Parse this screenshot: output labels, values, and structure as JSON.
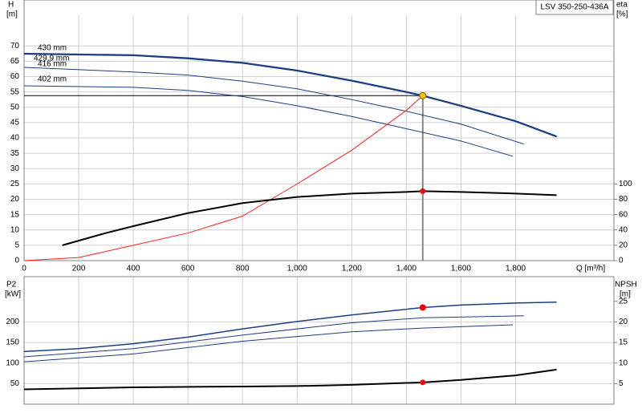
{
  "chart_data": [
    {
      "type": "line",
      "title": "LSV 350-250-436A",
      "y_label": "H",
      "y_unit": "[m]",
      "y2_label": "eta",
      "y2_unit": "[%]",
      "x_label": "Q [m³/h]",
      "xlim": [
        0,
        2160
      ],
      "xticks": [
        0,
        200,
        400,
        600,
        800,
        {
          "value": 1000,
          "label": "1,000"
        },
        {
          "value": 1200,
          "label": "1,200"
        },
        {
          "value": 1400,
          "label": "1,400"
        },
        {
          "value": 1600,
          "label": "1,600"
        },
        {
          "value": 1800,
          "label": "1,800"
        }
      ],
      "ylim": [
        0,
        80
      ],
      "yticks": [
        0,
        5,
        10,
        15,
        20,
        25,
        30,
        35,
        40,
        45,
        50,
        55,
        60,
        65,
        70
      ],
      "y2lim": [
        0,
        320
      ],
      "y2ticks": [
        0,
        20,
        40,
        60,
        80,
        100
      ],
      "grid": true,
      "series": [
        {
          "name": "430 mm",
          "color": "#1c3f80",
          "width": 2,
          "x": [
            0,
            400,
            600,
            800,
            1000,
            1200,
            1400,
            1460,
            1600,
            1800,
            1950
          ],
          "values": [
            67.5,
            67,
            66,
            64.5,
            62,
            58.7,
            55,
            53.8,
            50.5,
            45.5,
            40.5
          ]
        },
        {
          "name": "429.9 mm",
          "color": "#1c3f80",
          "width": 1,
          "x": [
            0,
            400,
            600,
            800,
            1000,
            1200,
            1400,
            1460,
            1600,
            1800,
            1950
          ],
          "values": [
            67.3,
            66.8,
            65.8,
            64.3,
            61.8,
            58.5,
            54.8,
            53.6,
            50.3,
            45.3,
            40.3
          ]
        },
        {
          "name": "416 mm",
          "color": "#1c3f80",
          "width": 1,
          "x": [
            0,
            400,
            600,
            800,
            1000,
            1200,
            1400,
            1600,
            1830
          ],
          "values": [
            63,
            61.5,
            60.5,
            58.5,
            56,
            52.5,
            48.7,
            44.5,
            38
          ]
        },
        {
          "name": "402 mm",
          "color": "#1c3f80",
          "width": 1,
          "x": [
            0,
            400,
            600,
            800,
            1000,
            1200,
            1400,
            1600,
            1790
          ],
          "values": [
            57,
            56.5,
            55.5,
            53.5,
            50.5,
            47,
            43,
            39,
            34
          ]
        },
        {
          "color": "#ff2020",
          "width": 1,
          "x": [
            0,
            200,
            400,
            600,
            800,
            1000,
            1200,
            1400,
            1460
          ],
          "values": [
            0,
            1,
            5,
            9,
            14.5,
            25,
            36,
            49,
            53.8
          ]
        },
        {
          "color": "#000000",
          "width": 2,
          "axis": "y2",
          "x": [
            140,
            300,
            400,
            600,
            800,
            1000,
            1200,
            1400,
            1460,
            1600,
            1800,
            1950
          ],
          "values": [
            20,
            36,
            45,
            62,
            75,
            83,
            87.5,
            89.6,
            90.6,
            89.6,
            87.5,
            85.4
          ]
        }
      ],
      "operating_point": {
        "x": 1460,
        "y": 53.8,
        "y2": 90.6
      }
    },
    {
      "type": "line",
      "y_label": "P2",
      "y_unit": "[kW]",
      "y2_label": "NPSH",
      "y2_unit": "[m]",
      "xlim": [
        0,
        2160
      ],
      "ylim": [
        0,
        310
      ],
      "yticks": [
        50,
        100,
        150,
        200
      ],
      "y2lim": [
        0,
        31
      ],
      "y2ticks": [
        5,
        10,
        15,
        20,
        25
      ],
      "grid": true,
      "series": [
        {
          "color": "#1c3f80",
          "width": 1.5,
          "x": [
            0,
            200,
            400,
            600,
            800,
            1000,
            1200,
            1460,
            1600,
            1800,
            1950
          ],
          "values": [
            128,
            135,
            147,
            163,
            183,
            201,
            217,
            235,
            241,
            246,
            248
          ]
        },
        {
          "color": "#1c3f80",
          "width": 1,
          "x": [
            0,
            400,
            800,
            1200,
            1460,
            1830
          ],
          "values": [
            115,
            135,
            168,
            198,
            210,
            215
          ]
        },
        {
          "color": "#1c3f80",
          "width": 1,
          "x": [
            0,
            400,
            800,
            1200,
            1460,
            1790
          ],
          "values": [
            103,
            122,
            153,
            176,
            185,
            193
          ]
        },
        {
          "color": "#000000",
          "width": 2,
          "axis": "y2",
          "x": [
            0,
            400,
            800,
            1000,
            1200,
            1460,
            1600,
            1800,
            1950
          ],
          "values": [
            3.6,
            4.1,
            4.3,
            4.4,
            4.7,
            5.3,
            5.9,
            7.0,
            8.4
          ]
        }
      ],
      "operating_point": {
        "x": 1460,
        "y": 235,
        "y2": 5.3
      }
    }
  ]
}
